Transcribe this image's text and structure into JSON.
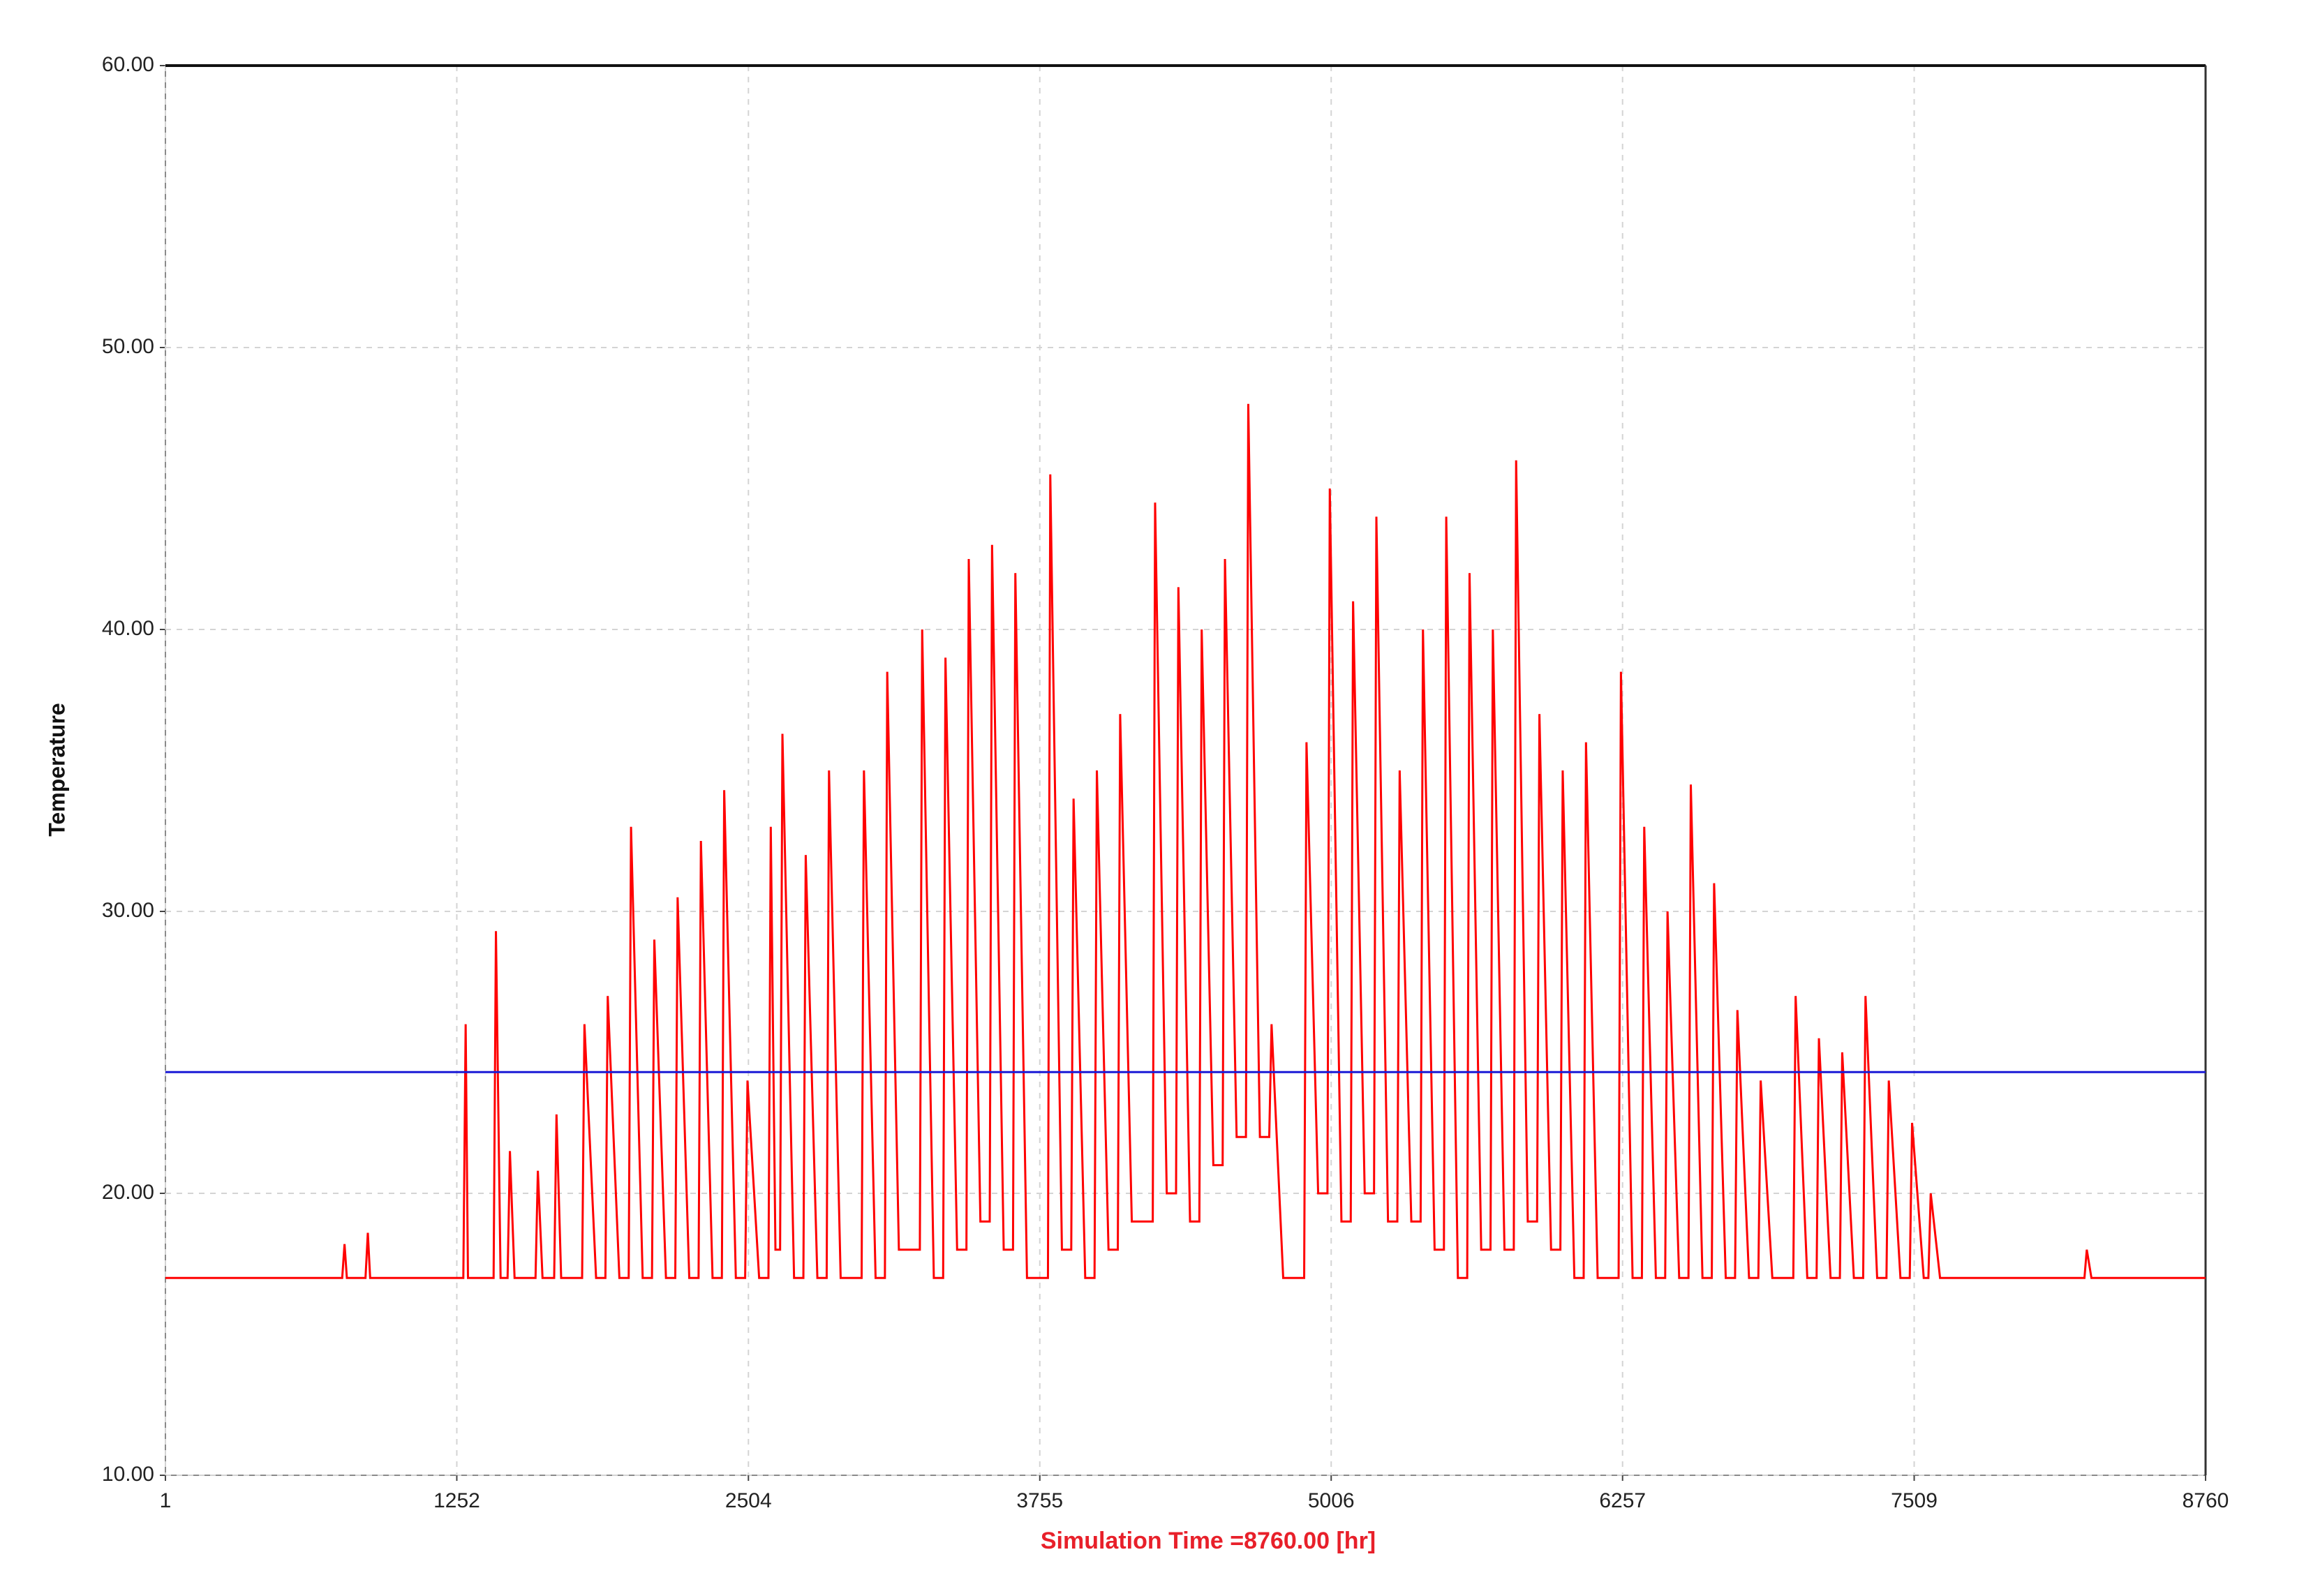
{
  "chart_data": {
    "type": "line",
    "xlabel": "Simulation Time =8760.00 [hr]",
    "ylabel": "Temperature",
    "xlim": [
      1,
      8760
    ],
    "xticks": [
      1,
      1252,
      2504,
      3755,
      5006,
      6257,
      7509,
      8760
    ],
    "ylim": [
      10,
      60
    ],
    "yticks": [
      {
        "value": 10,
        "label": "10.00"
      },
      {
        "value": 20,
        "label": "20.00"
      },
      {
        "value": 30,
        "label": "30.00"
      },
      {
        "value": 40,
        "label": "40.00"
      },
      {
        "value": 50,
        "label": "50.00"
      },
      {
        "value": 60,
        "label": "60.00"
      }
    ],
    "grid": true,
    "series": [
      {
        "color": "#ff0000",
        "x": [
          1,
          760,
          770,
          780,
          860,
          870,
          880,
          1280,
          1290,
          1300,
          1410,
          1420,
          1440,
          1470,
          1480,
          1500,
          1590,
          1600,
          1620,
          1670,
          1680,
          1700,
          1790,
          1800,
          1850,
          1890,
          1900,
          1950,
          1990,
          2000,
          2050,
          2090,
          2100,
          2150,
          2190,
          2200,
          2250,
          2290,
          2300,
          2350,
          2390,
          2400,
          2450,
          2490,
          2500,
          2550,
          2590,
          2600,
          2620,
          2640,
          2650,
          2700,
          2740,
          2750,
          2800,
          2840,
          2850,
          2900,
          2990,
          3000,
          3050,
          3090,
          3100,
          3150,
          3240,
          3250,
          3300,
          3340,
          3350,
          3400,
          3440,
          3450,
          3500,
          3540,
          3550,
          3600,
          3640,
          3650,
          3700,
          3790,
          3800,
          3850,
          3890,
          3900,
          3950,
          3990,
          4000,
          4050,
          4090,
          4100,
          4150,
          4240,
          4250,
          4300,
          4340,
          4350,
          4400,
          4440,
          4450,
          4500,
          4540,
          4550,
          4600,
          4640,
          4650,
          4700,
          4740,
          4750,
          4800,
          4890,
          4900,
          4950,
          4990,
          5000,
          5050,
          5090,
          5100,
          5150,
          5190,
          5200,
          5250,
          5290,
          5300,
          5350,
          5390,
          5400,
          5450,
          5490,
          5500,
          5550,
          5590,
          5600,
          5650,
          5690,
          5700,
          5750,
          5790,
          5800,
          5850,
          5890,
          5900,
          5950,
          5990,
          6000,
          6050,
          6090,
          6100,
          6150,
          6240,
          6250,
          6300,
          6340,
          6350,
          6400,
          6440,
          6450,
          6500,
          6540,
          6550,
          6600,
          6640,
          6650,
          6700,
          6740,
          6750,
          6800,
          6840,
          6850,
          6900,
          6990,
          7000,
          7050,
          7090,
          7100,
          7150,
          7190,
          7200,
          7250,
          7290,
          7300,
          7350,
          7390,
          7400,
          7450,
          7490,
          7500,
          7550,
          7570,
          7580,
          7620,
          8240,
          8250,
          8270,
          8760
        ],
        "values": [
          17,
          17,
          18.2,
          17,
          17,
          18.6,
          17,
          17,
          26,
          17,
          17,
          29.3,
          17,
          17,
          21.5,
          17,
          17,
          20.8,
          17,
          17,
          22.8,
          17,
          17,
          26,
          17,
          17,
          27,
          17,
          17,
          33,
          17,
          17,
          29,
          17,
          17,
          30.5,
          17,
          17,
          32.5,
          17,
          17,
          34.3,
          17,
          17,
          24,
          17,
          17,
          33,
          18,
          18,
          36.3,
          17,
          17,
          32,
          17,
          17,
          35,
          17,
          17,
          35,
          17,
          17,
          38.5,
          18,
          18,
          40,
          17,
          17,
          39,
          18,
          18,
          42.5,
          19,
          19,
          43,
          18,
          18,
          42,
          17,
          17,
          45.5,
          18,
          18,
          34,
          17,
          17,
          35,
          18,
          18,
          37,
          19,
          19,
          44.5,
          20,
          20,
          41.5,
          19,
          19,
          40,
          21,
          21,
          42.5,
          22,
          22,
          48,
          22,
          22,
          26,
          17,
          17,
          36,
          20,
          20,
          45,
          19,
          19,
          41,
          20,
          20,
          44,
          19,
          19,
          35,
          19,
          19,
          40,
          18,
          18,
          44,
          17,
          17,
          42,
          18,
          18,
          40,
          18,
          18,
          46,
          19,
          19,
          37,
          18,
          18,
          35,
          17,
          17,
          36,
          17,
          17,
          38.5,
          17,
          17,
          33,
          17,
          17,
          30,
          17,
          17,
          34.5,
          17,
          17,
          31,
          17,
          17,
          26.5,
          17,
          17,
          24,
          17,
          17,
          27,
          17,
          17,
          25.5,
          17,
          17,
          25,
          17,
          17,
          27,
          17,
          17,
          24,
          17,
          17,
          22.5,
          17,
          17,
          20,
          17,
          17,
          18,
          17,
          17
        ]
      },
      {
        "color": "#1a1ad6",
        "x": [
          1,
          8760
        ],
        "values": [
          24.3,
          24.3
        ]
      }
    ]
  }
}
